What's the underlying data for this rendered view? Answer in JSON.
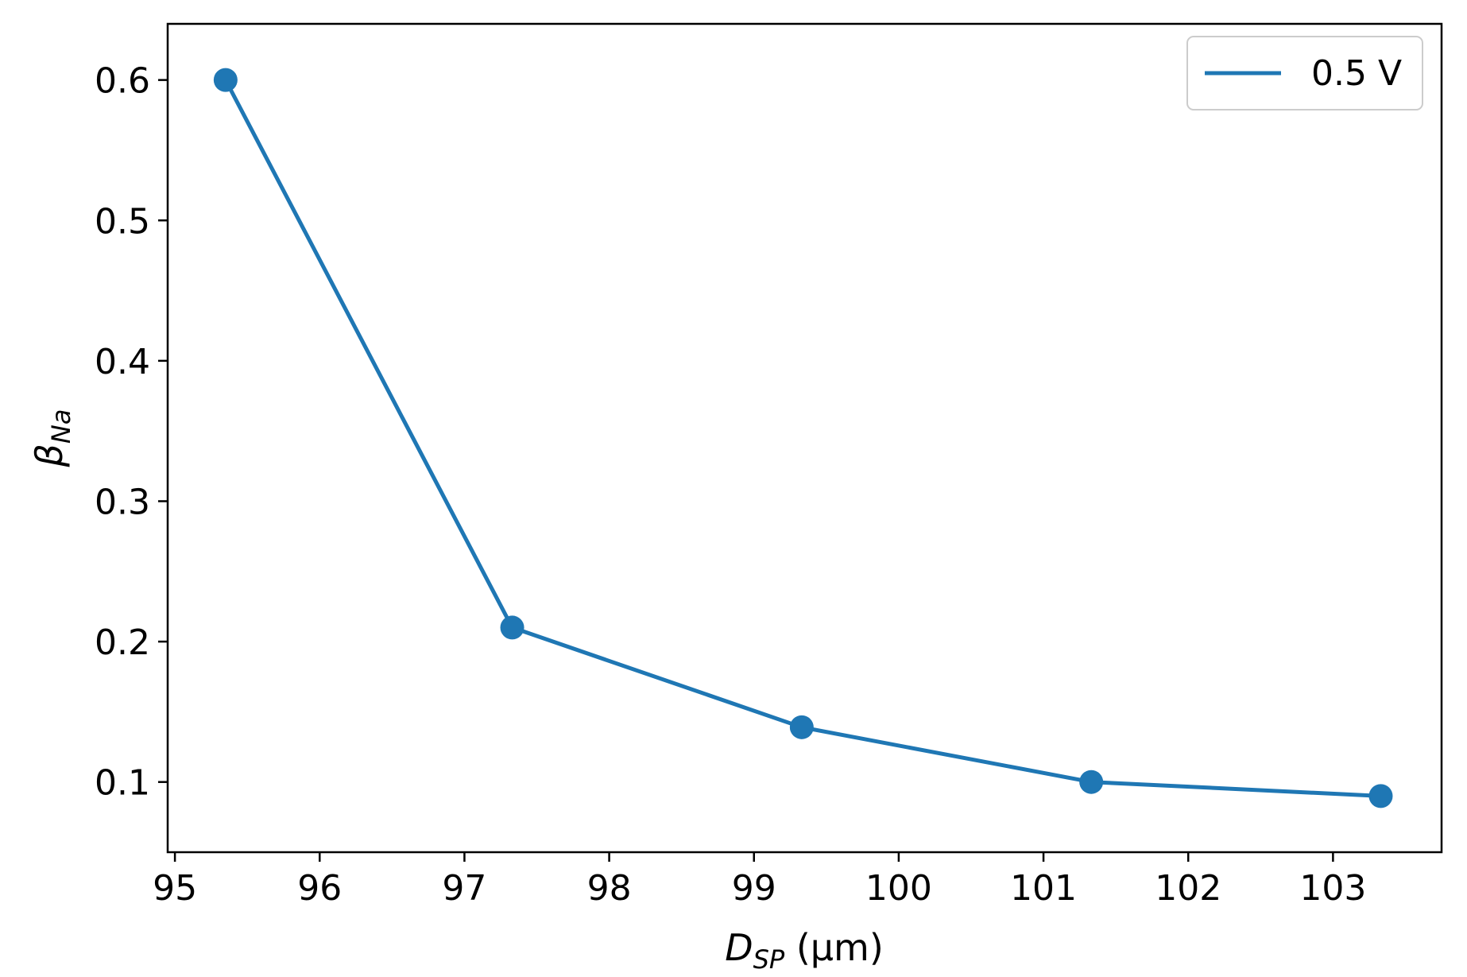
{
  "chart_data": {
    "type": "line",
    "xlabel": {
      "main": "D",
      "sub": "SP",
      "unit": " (µm)"
    },
    "ylabel": {
      "main": "β",
      "sub": "Na"
    },
    "xlim": [
      94.95,
      103.75
    ],
    "ylim": [
      0.05,
      0.64
    ],
    "xticks": [
      95,
      96,
      97,
      98,
      99,
      100,
      101,
      102,
      103
    ],
    "yticks": [
      0.1,
      0.2,
      0.3,
      0.4,
      0.5,
      0.6
    ],
    "xtick_labels": [
      "95",
      "96",
      "97",
      "98",
      "99",
      "100",
      "101",
      "102",
      "103"
    ],
    "ytick_labels": [
      "0.1",
      "0.2",
      "0.3",
      "0.4",
      "0.5",
      "0.6"
    ],
    "grid": false,
    "legend_position": "top-right",
    "series": [
      {
        "name": "0.5 V",
        "color": "#1f77b4",
        "markers": true,
        "x": [
          95.35,
          97.33,
          99.33,
          101.33,
          103.33
        ],
        "y": [
          0.6,
          0.21,
          0.139,
          0.1,
          0.09
        ]
      }
    ]
  }
}
